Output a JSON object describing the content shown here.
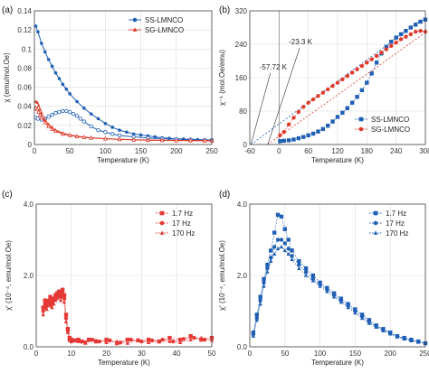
{
  "chart_data": [
    {
      "id": "a",
      "panel_label": "(a)",
      "type": "line",
      "xlabel": "Temperature (K)",
      "ylabel": "χ (emu/mol.Oe)",
      "xlim": [
        0,
        250
      ],
      "ylim": [
        0,
        0.14
      ],
      "xticks": [
        0,
        50,
        100,
        150,
        200,
        250
      ],
      "yticks": [
        0,
        0.02,
        0.04,
        0.06,
        0.08,
        0.1,
        0.12,
        0.14
      ],
      "ytick_labels": [
        "0",
        "0.02",
        "0.04",
        "0.06",
        "0.08",
        "0.1",
        "0.12",
        "0.14"
      ],
      "grid": true,
      "legend_position": "top-right",
      "series": [
        {
          "name": "SS-LMNCO",
          "color": "#1f5fb4",
          "marker": "circle",
          "x": [
            2,
            5,
            10,
            15,
            20,
            25,
            30,
            35,
            40,
            45,
            50,
            60,
            70,
            80,
            90,
            100,
            110,
            120,
            130,
            140,
            150,
            160,
            170,
            180,
            190,
            200,
            210,
            220,
            230,
            240,
            250
          ],
          "y": [
            0.124,
            0.118,
            0.106,
            0.097,
            0.089,
            0.082,
            0.075,
            0.069,
            0.063,
            0.058,
            0.053,
            0.045,
            0.038,
            0.032,
            0.027,
            0.022,
            0.018,
            0.015,
            0.013,
            0.011,
            0.01,
            0.009,
            0.008,
            0.007,
            0.0065,
            0.006,
            0.0057,
            0.0055,
            0.0052,
            0.005,
            0.0048
          ]
        },
        {
          "name": "",
          "color": "#1f5fb4",
          "marker": "circle",
          "x": [
            2,
            5,
            10,
            15,
            20,
            25,
            30,
            35,
            40,
            45,
            50,
            55,
            60,
            65,
            70,
            80,
            90,
            100,
            110,
            120,
            140,
            160,
            180,
            200,
            220,
            240,
            250
          ],
          "y": [
            0.028,
            0.027,
            0.026,
            0.027,
            0.029,
            0.031,
            0.033,
            0.034,
            0.035,
            0.035,
            0.034,
            0.032,
            0.03,
            0.027,
            0.024,
            0.019,
            0.015,
            0.013,
            0.011,
            0.0095,
            0.008,
            0.0068,
            0.006,
            0.0055,
            0.005,
            0.0047,
            0.0046
          ]
        },
        {
          "name": "SG-LMNCO",
          "color": "#e03a2b",
          "marker": "triangle",
          "x": [
            2,
            4,
            6,
            8,
            10,
            15,
            20,
            25,
            30,
            40,
            50,
            60,
            70,
            80,
            100,
            120,
            140,
            160,
            180,
            200,
            220,
            240,
            250
          ],
          "y": [
            0.045,
            0.044,
            0.041,
            0.037,
            0.033,
            0.026,
            0.021,
            0.018,
            0.015,
            0.012,
            0.01,
            0.0088,
            0.0078,
            0.0071,
            0.0062,
            0.0055,
            0.005,
            0.0047,
            0.0045,
            0.0043,
            0.0042,
            0.0041,
            0.004
          ]
        },
        {
          "name": "",
          "color": "#e03a2b",
          "marker": "triangle",
          "x": [
            2,
            4,
            6,
            8,
            10,
            15,
            20,
            25,
            30,
            40,
            50,
            60,
            70,
            80,
            100,
            120,
            140,
            160,
            180,
            200,
            220,
            240,
            250
          ],
          "y": [
            0.038,
            0.037,
            0.034,
            0.031,
            0.028,
            0.023,
            0.019,
            0.016,
            0.014,
            0.011,
            0.0095,
            0.0084,
            0.0075,
            0.0068,
            0.006,
            0.0053,
            0.0048,
            0.0045,
            0.0043,
            0.0041,
            0.004,
            0.0039,
            0.0039
          ]
        }
      ]
    },
    {
      "id": "b",
      "panel_label": "(b)",
      "type": "scatter",
      "xlabel": "Temperature (K)",
      "ylabel": "χ⁻¹ (mol.Oe/emu)",
      "xlim": [
        -60,
        300
      ],
      "ylim": [
        0,
        320
      ],
      "xticks": [
        -60,
        0,
        60,
        120,
        180,
        240,
        300
      ],
      "yticks": [
        0,
        80,
        160,
        240,
        320
      ],
      "grid": true,
      "legend_position": "bottom-right",
      "series": [
        {
          "name": "SS-LMNCO",
          "color": "#1f5fb4",
          "marker": "square",
          "x": [
            2,
            10,
            20,
            30,
            40,
            50,
            60,
            70,
            80,
            90,
            100,
            110,
            120,
            130,
            140,
            150,
            160,
            170,
            180,
            190,
            200,
            210,
            220,
            230,
            240,
            250,
            260,
            270,
            280,
            290,
            300
          ],
          "y": [
            8,
            9,
            10,
            12,
            15,
            18,
            22,
            26,
            31,
            37,
            45,
            55,
            66,
            76,
            87,
            100,
            114,
            130,
            148,
            170,
            196,
            218,
            234,
            246,
            256,
            264,
            272,
            280,
            287,
            294,
            299
          ]
        },
        {
          "name": "SG-LMNCO",
          "color": "#e03a2b",
          "marker": "circle",
          "x": [
            2,
            10,
            20,
            30,
            40,
            50,
            60,
            70,
            80,
            90,
            100,
            110,
            120,
            130,
            140,
            150,
            160,
            170,
            180,
            190,
            200,
            210,
            220,
            230,
            240,
            250,
            260,
            270,
            280,
            290,
            300
          ],
          "y": [
            22,
            30,
            48,
            64,
            78,
            90,
            100,
            108,
            116,
            124,
            132,
            140,
            148,
            156,
            164,
            172,
            180,
            188,
            196,
            204,
            212,
            220,
            228,
            236,
            244,
            252,
            258,
            264,
            270,
            272,
            270
          ]
        }
      ],
      "fit_lines": [
        {
          "label": "-57.72 K",
          "color": "#1f5fb4",
          "x": [
            -57.72,
            300
          ],
          "y": [
            0,
            305
          ]
        },
        {
          "label": "-23.3 K",
          "color": "#e03a2b",
          "x": [
            -23.3,
            300
          ],
          "y": [
            0,
            268
          ]
        }
      ]
    },
    {
      "id": "c",
      "panel_label": "(c)",
      "type": "scatter",
      "xlabel": "Temperature (K)",
      "ylabel": "χ' (10⁻⁴, emu/mol.Oe)",
      "xlim": [
        0,
        50
      ],
      "ylim": [
        0,
        4.0
      ],
      "xticks": [
        0,
        10,
        20,
        30,
        40,
        50
      ],
      "yticks": [
        0,
        2.0,
        4.0
      ],
      "ytick_labels": [
        "0.0",
        "2.0",
        "4.0"
      ],
      "grid": true,
      "legend_position": "top-right",
      "series": [
        {
          "name": "1.7 Hz",
          "color": "#e53935",
          "marker": "square",
          "x": [
            2,
            2.5,
            3,
            3.5,
            4,
            4.5,
            5,
            5.5,
            6,
            6.5,
            7,
            7.5,
            8,
            8.5,
            9,
            9.5,
            10,
            11,
            12,
            13,
            15,
            17,
            20,
            23,
            26,
            29,
            32,
            35,
            38,
            41,
            44,
            47,
            50
          ],
          "y": [
            1.1,
            1.3,
            1.25,
            1.2,
            1.4,
            1.3,
            1.35,
            1.45,
            1.5,
            1.55,
            1.5,
            1.6,
            1.45,
            0.9,
            0.5,
            0.25,
            0.2,
            0.18,
            0.2,
            0.15,
            0.2,
            0.15,
            0.2,
            0.1,
            0.2,
            0.18,
            0.2,
            0.15,
            0.25,
            0.2,
            0.3,
            0.2,
            0.25
          ]
        },
        {
          "name": "17 Hz",
          "color": "#e53935",
          "marker": "circle",
          "x": [
            2,
            2.5,
            3,
            3.5,
            4,
            4.5,
            5,
            5.5,
            6,
            6.5,
            7,
            7.5,
            8,
            8.5,
            9,
            9.5,
            10,
            12,
            14,
            16,
            18,
            21,
            24,
            27,
            30,
            33,
            36,
            39,
            42,
            45,
            48
          ],
          "y": [
            1.0,
            1.2,
            1.15,
            1.3,
            1.25,
            1.2,
            1.3,
            1.4,
            1.45,
            1.5,
            1.4,
            1.55,
            1.35,
            0.8,
            0.45,
            0.2,
            0.15,
            0.18,
            0.12,
            0.2,
            0.15,
            0.18,
            0.12,
            0.2,
            0.15,
            0.18,
            0.2,
            0.15,
            0.22,
            0.25,
            0.2
          ]
        },
        {
          "name": "170 Hz",
          "color": "#e53935",
          "marker": "triangle",
          "x": [
            2,
            2.5,
            3,
            3.5,
            4,
            4.5,
            5,
            5.5,
            6,
            6.5,
            7,
            7.5,
            8,
            8.5,
            9,
            9.5,
            10,
            12,
            14,
            17,
            20,
            23,
            26,
            29,
            32,
            35,
            38,
            41,
            44,
            47,
            50
          ],
          "y": [
            0.9,
            1.1,
            1.05,
            1.2,
            1.15,
            1.1,
            1.2,
            1.3,
            1.35,
            1.4,
            1.3,
            1.45,
            1.25,
            0.7,
            0.4,
            0.18,
            0.15,
            0.15,
            0.1,
            0.18,
            0.12,
            0.15,
            0.1,
            0.18,
            0.12,
            0.15,
            0.15,
            0.12,
            0.2,
            0.25,
            0.18
          ]
        }
      ]
    },
    {
      "id": "d",
      "panel_label": "(d)",
      "type": "scatter",
      "xlabel": "Temperature (K)",
      "ylabel": "χ' (10⁻⁴, emu/mol.Oe)",
      "xlim": [
        0,
        250
      ],
      "ylim": [
        0,
        4.0
      ],
      "xticks": [
        0,
        50,
        100,
        150,
        200,
        250
      ],
      "yticks": [
        0,
        2.0,
        4.0
      ],
      "ytick_labels": [
        "0.0",
        "2.0",
        "4.0"
      ],
      "grid": true,
      "legend_position": "top-right",
      "series": [
        {
          "name": "1.7 Hz",
          "color": "#1f5fb4",
          "marker": "square",
          "x": [
            5,
            10,
            15,
            20,
            25,
            30,
            35,
            40,
            45,
            50,
            55,
            60,
            70,
            80,
            90,
            100,
            110,
            120,
            130,
            140,
            150,
            160,
            170,
            180,
            190,
            200,
            210,
            220,
            230,
            240,
            250
          ],
          "y": [
            0.4,
            0.9,
            1.4,
            1.9,
            2.3,
            2.7,
            3.2,
            3.7,
            3.65,
            3.3,
            3.0,
            2.7,
            2.4,
            2.2,
            2.0,
            1.8,
            1.65,
            1.5,
            1.35,
            1.2,
            1.05,
            0.9,
            0.75,
            0.6,
            0.5,
            0.4,
            0.3,
            0.25,
            0.2,
            0.15,
            0.1
          ]
        },
        {
          "name": "17 Hz",
          "color": "#1f5fb4",
          "marker": "circle",
          "x": [
            5,
            10,
            15,
            20,
            25,
            30,
            35,
            40,
            45,
            50,
            55,
            60,
            70,
            80,
            90,
            100,
            110,
            120,
            130,
            140,
            150,
            160,
            170,
            180,
            190,
            200,
            210,
            220,
            230,
            240,
            250
          ],
          "y": [
            0.35,
            0.8,
            1.3,
            1.8,
            2.2,
            2.5,
            2.8,
            3.0,
            3.0,
            2.9,
            2.75,
            2.55,
            2.3,
            2.1,
            1.9,
            1.75,
            1.6,
            1.45,
            1.3,
            1.15,
            1.0,
            0.85,
            0.7,
            0.58,
            0.48,
            0.38,
            0.3,
            0.24,
            0.18,
            0.14,
            0.1
          ]
        },
        {
          "name": "170 Hz",
          "color": "#1f5fb4",
          "marker": "triangle",
          "x": [
            5,
            10,
            15,
            20,
            25,
            30,
            35,
            40,
            45,
            50,
            55,
            60,
            70,
            80,
            90,
            100,
            110,
            120,
            130,
            140,
            150,
            160,
            170,
            180,
            190,
            200,
            210,
            220,
            230,
            240,
            250
          ],
          "y": [
            0.3,
            0.75,
            1.2,
            1.7,
            2.1,
            2.4,
            2.6,
            2.75,
            2.8,
            2.7,
            2.6,
            2.45,
            2.2,
            2.0,
            1.85,
            1.7,
            1.55,
            1.4,
            1.25,
            1.1,
            0.95,
            0.8,
            0.66,
            0.55,
            0.45,
            0.36,
            0.28,
            0.22,
            0.17,
            0.13,
            0.1
          ]
        }
      ]
    }
  ]
}
